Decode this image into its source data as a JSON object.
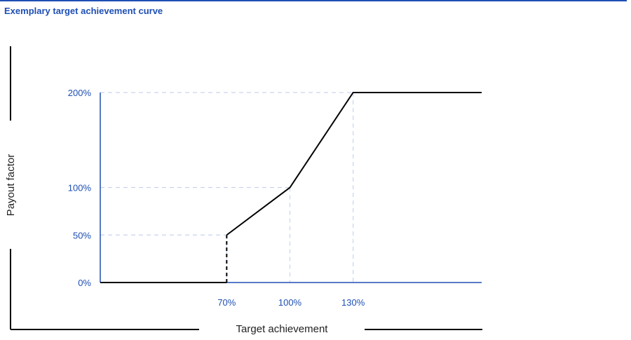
{
  "title": "Exemplary target achievement curve",
  "colors": {
    "accent": "#1e4fb4",
    "curve": "#000000",
    "guide": "#c9d3ef",
    "frame": "#000000"
  },
  "chart_data": {
    "type": "line",
    "title": "Exemplary target achievement curve",
    "xlabel": "Target achievement",
    "ylabel": "Payout factor",
    "x_ticks": [
      {
        "value": 70,
        "label": "70%"
      },
      {
        "value": 100,
        "label": "100%"
      },
      {
        "value": 130,
        "label": "130%"
      }
    ],
    "y_ticks": [
      {
        "value": 0,
        "label": "0%"
      },
      {
        "value": 50,
        "label": "50%"
      },
      {
        "value": 100,
        "label": "100%"
      },
      {
        "value": 200,
        "label": "200%"
      }
    ],
    "xlim": [
      10,
      191
    ],
    "ylim": [
      0,
      200
    ],
    "grid": "dashed guide lines at key points",
    "series": [
      {
        "segments": [
          {
            "style": "solid",
            "points": [
              [
                10,
                0
              ],
              [
                70,
                0
              ]
            ]
          },
          {
            "style": "dashed",
            "points": [
              [
                70,
                0
              ],
              [
                70,
                50
              ]
            ]
          },
          {
            "style": "solid",
            "points": [
              [
                70,
                50
              ],
              [
                100,
                100
              ],
              [
                130,
                200
              ],
              [
                191,
                200
              ]
            ]
          }
        ]
      }
    ],
    "guides": [
      {
        "x": 70,
        "y": 50
      },
      {
        "x": 100,
        "y": 100
      },
      {
        "x": 130,
        "y": 200
      }
    ]
  }
}
